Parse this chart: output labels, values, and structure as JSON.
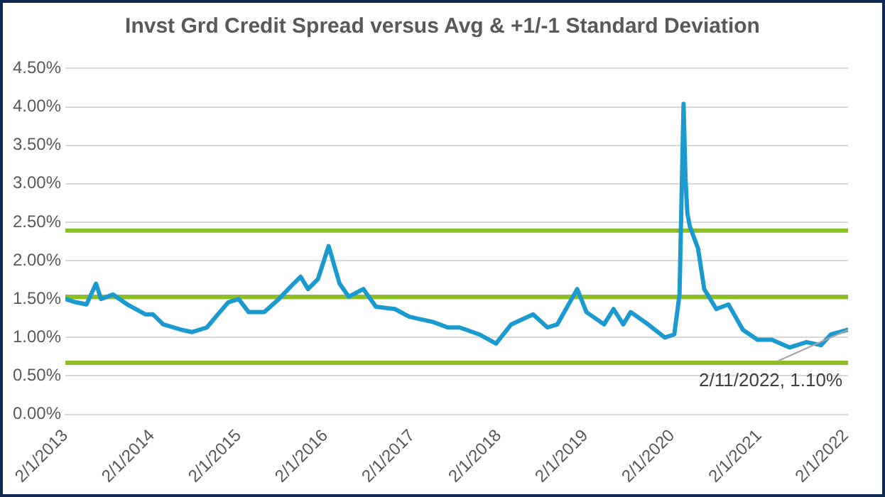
{
  "chart_data": {
    "type": "line",
    "title": "Invst Grd Credit Spread versus Avg & +1/-1 Standard Deviation",
    "x": [
      "2013-02-01",
      "2013-03-15",
      "2013-05-01",
      "2013-06-10",
      "2013-07-01",
      "2013-08-20",
      "2013-10-20",
      "2014-01-05",
      "2014-02-05",
      "2014-03-20",
      "2014-06-05",
      "2014-07-20",
      "2014-09-20",
      "2014-11-05",
      "2014-12-20",
      "2015-02-01",
      "2015-03-15",
      "2015-05-20",
      "2015-07-20",
      "2015-09-20",
      "2015-10-20",
      "2015-11-20",
      "2016-01-01",
      "2016-02-15",
      "2016-04-01",
      "2016-05-10",
      "2016-07-10",
      "2016-09-01",
      "2016-11-20",
      "2017-01-20",
      "2017-05-01",
      "2017-07-01",
      "2017-08-20",
      "2017-11-10",
      "2018-01-20",
      "2018-03-25",
      "2018-06-25",
      "2018-08-25",
      "2018-10-05",
      "2018-12-28",
      "2019-02-05",
      "2019-04-20",
      "2019-05-30",
      "2019-07-10",
      "2019-08-10",
      "2019-10-10",
      "2020-01-01",
      "2020-02-10",
      "2020-03-03",
      "2020-03-20",
      "2020-03-28",
      "2020-04-05",
      "2020-04-15",
      "2020-05-20",
      "2020-06-15",
      "2020-08-05",
      "2020-09-25",
      "2020-11-25",
      "2021-01-25",
      "2021-03-27",
      "2021-06-10",
      "2021-08-20",
      "2021-10-20",
      "2021-12-01",
      "2022-02-11"
    ],
    "series": [
      {
        "color": "#1b9ad0",
        "values": [
          1.5,
          1.46,
          1.43,
          1.7,
          1.5,
          1.56,
          1.43,
          1.3,
          1.3,
          1.17,
          1.1,
          1.07,
          1.13,
          1.3,
          1.46,
          1.5,
          1.33,
          1.33,
          1.5,
          1.7,
          1.79,
          1.63,
          1.76,
          2.19,
          1.7,
          1.53,
          1.63,
          1.4,
          1.37,
          1.27,
          1.2,
          1.13,
          1.13,
          1.04,
          0.92,
          1.17,
          1.3,
          1.13,
          1.17,
          1.63,
          1.33,
          1.17,
          1.37,
          1.17,
          1.33,
          1.2,
          1.0,
          1.04,
          1.56,
          4.04,
          3.08,
          2.62,
          2.45,
          2.16,
          1.63,
          1.37,
          1.43,
          1.1,
          0.97,
          0.97,
          0.87,
          0.94,
          0.9,
          1.04,
          1.1
        ]
      }
    ],
    "ylim": [
      0,
      4.5
    ],
    "yticks": [
      {
        "value": 0,
        "label": "0.00%"
      },
      {
        "value": 0.5,
        "label": "0.50%"
      },
      {
        "value": 1,
        "label": "1.00%"
      },
      {
        "value": 1.5,
        "label": "1.50%"
      },
      {
        "value": 2,
        "label": "2.00%"
      },
      {
        "value": 2.5,
        "label": "2.50%"
      },
      {
        "value": 3,
        "label": "3.00%"
      },
      {
        "value": 3.5,
        "label": "3.50%"
      },
      {
        "value": 4,
        "label": "4.00%"
      },
      {
        "value": 4.5,
        "label": "4.50%"
      }
    ],
    "xlim": [
      "2013-02-01",
      "2022-02-11"
    ],
    "xticks": [
      {
        "value": "2013-02-01",
        "label": "2/1/2013"
      },
      {
        "value": "2014-02-01",
        "label": "2/1/2014"
      },
      {
        "value": "2015-02-01",
        "label": "2/1/2015"
      },
      {
        "value": "2016-02-01",
        "label": "2/1/2016"
      },
      {
        "value": "2017-02-01",
        "label": "2/1/2017"
      },
      {
        "value": "2018-02-01",
        "label": "2/1/2018"
      },
      {
        "value": "2019-02-01",
        "label": "2/1/2019"
      },
      {
        "value": "2020-02-01",
        "label": "2/1/2020"
      },
      {
        "value": "2021-02-01",
        "label": "2/1/2021"
      },
      {
        "value": "2022-02-01",
        "label": "2/1/2022"
      }
    ],
    "ref_lines": [
      {
        "axis": "y",
        "value": 2.39,
        "color": "#8cbf26"
      },
      {
        "axis": "y",
        "value": 1.53,
        "color": "#8cbf26"
      },
      {
        "axis": "y",
        "value": 0.67,
        "color": "#8cbf26"
      }
    ],
    "annotations": [
      {
        "text": "2/11/2022, 1.10%",
        "x": "2022-02-11",
        "y": 1.1
      }
    ],
    "grid": "y",
    "legend": false,
    "marker": "none",
    "line_style": "solid"
  }
}
